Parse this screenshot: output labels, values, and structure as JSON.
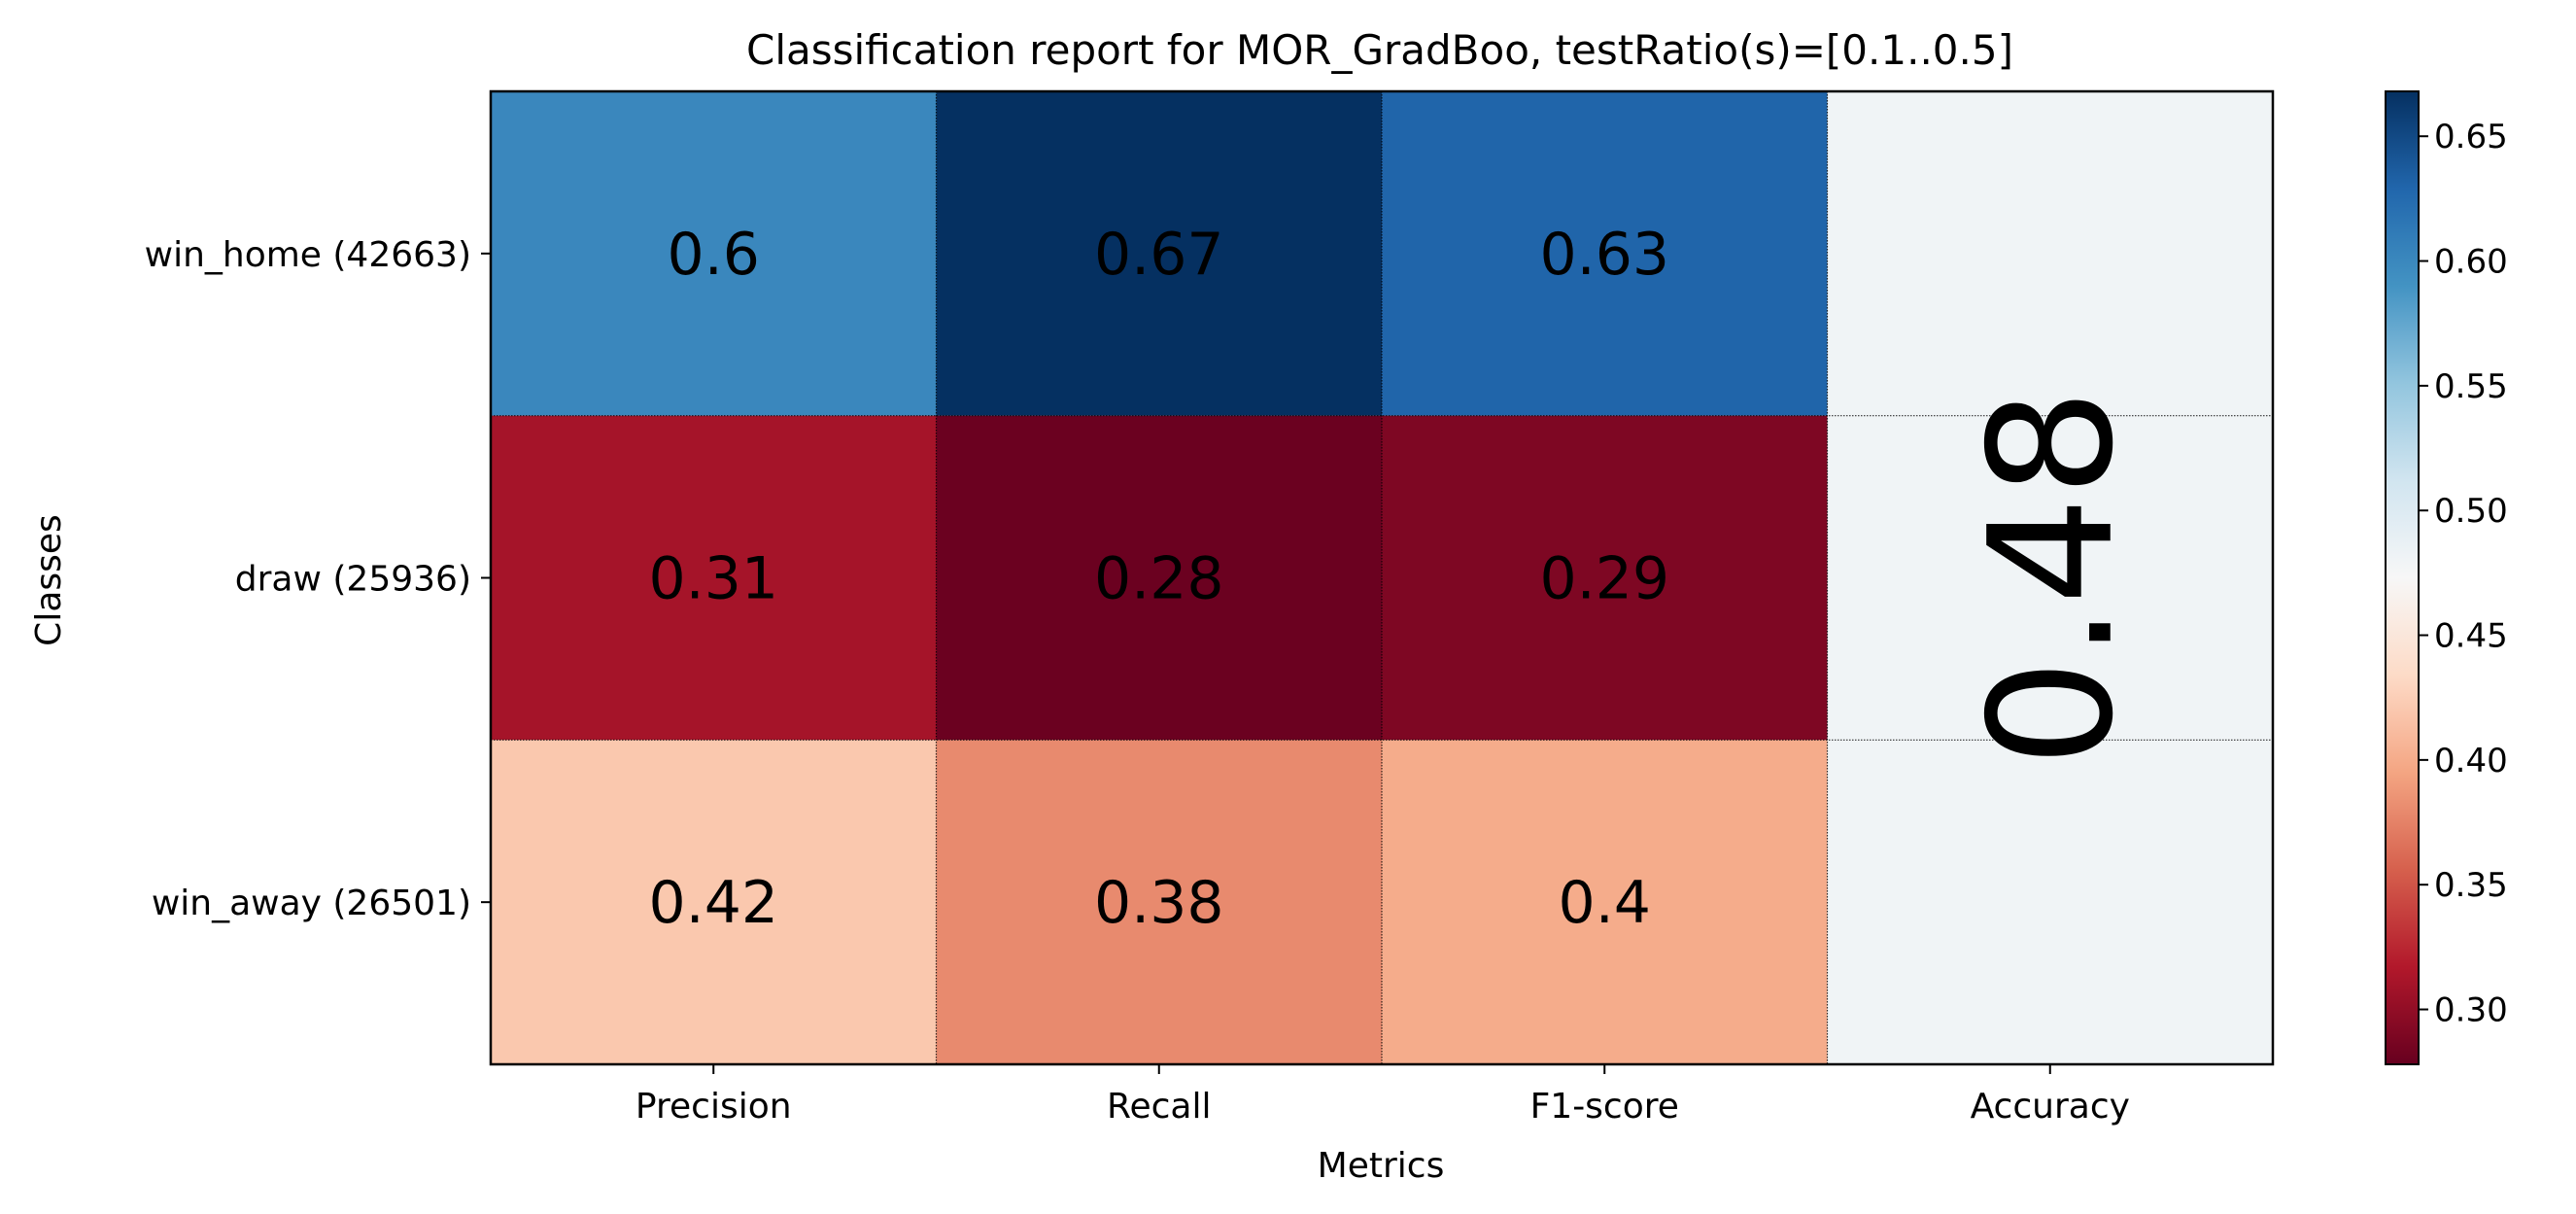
{
  "chart_data": {
    "type": "heatmap",
    "title": "Classification report for MOR_GradBoo, testRatio(s)=[0.1..0.5]",
    "xlabel": "Metrics",
    "ylabel": "Classes",
    "columns": [
      "Precision",
      "Recall",
      "F1-score",
      "Accuracy"
    ],
    "rows": [
      "win_home (42663)",
      "draw (25936)",
      "win_away (26501)"
    ],
    "values": [
      [
        0.6,
        0.67,
        0.63
      ],
      [
        0.31,
        0.28,
        0.29
      ],
      [
        0.42,
        0.38,
        0.4
      ]
    ],
    "cell_labels": [
      [
        "0.6",
        "0.67",
        "0.63"
      ],
      [
        "0.31",
        "0.28",
        "0.29"
      ],
      [
        "0.42",
        "0.38",
        "0.4"
      ]
    ],
    "accuracy": 0.48,
    "accuracy_label": "0.48",
    "colormap": "RdBu",
    "colorbar": {
      "range": [
        0.278,
        0.668
      ],
      "ticks": [
        0.3,
        0.35,
        0.4,
        0.45,
        0.5,
        0.55,
        0.6,
        0.65
      ],
      "tick_labels": [
        "0.30",
        "0.35",
        "0.40",
        "0.45",
        "0.50",
        "0.55",
        "0.60",
        "0.65"
      ]
    }
  }
}
